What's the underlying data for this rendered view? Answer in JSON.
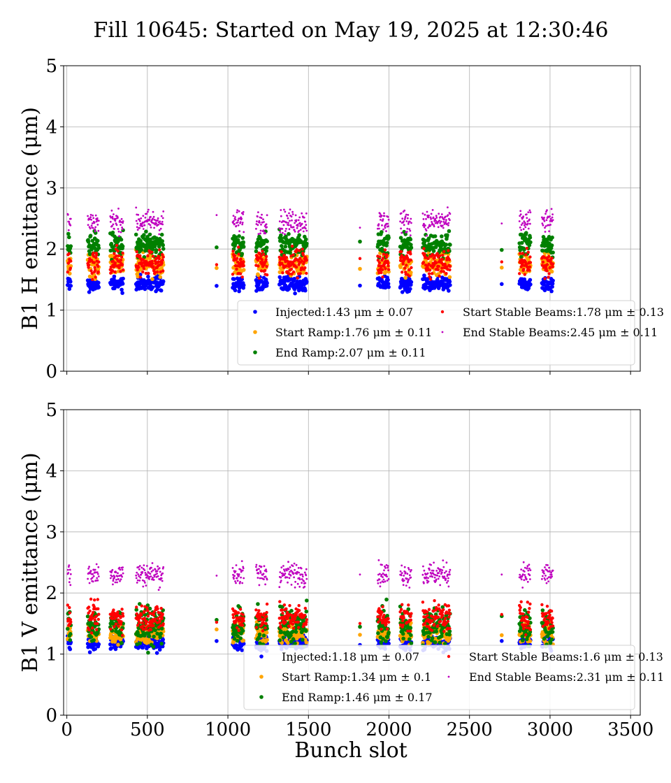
{
  "figure": {
    "title": "Fill 10645: Started on May 19, 2025 at 12:30:46",
    "xlabel": "Bunch slot"
  },
  "chart_data": [
    {
      "type": "scatter",
      "ylabel": "B1 H emittance (μm)",
      "xlim": [
        -20,
        3560
      ],
      "ylim": [
        0,
        5
      ],
      "xticks": [
        0,
        500,
        1000,
        1500,
        2000,
        2500,
        3000,
        3500
      ],
      "yticks": [
        0,
        1,
        2,
        3,
        4,
        5
      ],
      "grid": true,
      "legend_placement": "lower-right",
      "legend_columns": 2,
      "trains": [
        [
          5,
          25
        ],
        [
          130,
          200
        ],
        [
          270,
          350
        ],
        [
          430,
          600
        ],
        [
          1030,
          1100
        ],
        [
          1175,
          1245
        ],
        [
          1320,
          1490
        ],
        [
          1930,
          2000
        ],
        [
          2070,
          2140
        ],
        [
          2210,
          2380
        ],
        [
          2810,
          2880
        ],
        [
          2950,
          3020
        ]
      ],
      "singles": [
        930,
        1820,
        2700
      ],
      "series": [
        {
          "label": "Injected",
          "mean": 1.43,
          "std": 0.07,
          "color": "#0000ff",
          "marker_r": 2.8
        },
        {
          "label": "Start Ramp",
          "mean": 1.76,
          "std": 0.11,
          "color": "#ffa500",
          "marker_r": 2.8
        },
        {
          "label": "End Ramp",
          "mean": 2.07,
          "std": 0.11,
          "color": "#008000",
          "marker_r": 2.8
        },
        {
          "label": "Start Stable Beams",
          "mean": 1.78,
          "std": 0.13,
          "color": "#ff0000",
          "marker_r": 2.2
        },
        {
          "label": "End Stable Beams",
          "mean": 2.45,
          "std": 0.11,
          "color": "#bf00bf",
          "marker_r": 1.4
        }
      ],
      "legend_entries": [
        "Injected:1.43 μm ± 0.07",
        "Start Ramp:1.76 μm ± 0.11",
        "End Ramp:2.07 μm ± 0.11",
        "Start Stable Beams:1.78 μm ± 0.13",
        "End Stable Beams:2.45 μm ± 0.11"
      ]
    },
    {
      "type": "scatter",
      "ylabel": "B1 V emittance (μm)",
      "xlim": [
        -20,
        3560
      ],
      "ylim": [
        0,
        5
      ],
      "xticks": [
        0,
        500,
        1000,
        1500,
        2000,
        2500,
        3000,
        3500
      ],
      "yticks": [
        0,
        1,
        2,
        3,
        4,
        5
      ],
      "grid": true,
      "legend_placement": "lower-right",
      "legend_columns": 2,
      "trains": [
        [
          5,
          25
        ],
        [
          130,
          200
        ],
        [
          270,
          350
        ],
        [
          430,
          600
        ],
        [
          1030,
          1100
        ],
        [
          1175,
          1245
        ],
        [
          1320,
          1490
        ],
        [
          1930,
          2000
        ],
        [
          2070,
          2140
        ],
        [
          2210,
          2380
        ],
        [
          2810,
          2880
        ],
        [
          2950,
          3020
        ]
      ],
      "singles": [
        930,
        1820,
        2700
      ],
      "series": [
        {
          "label": "Injected",
          "mean": 1.18,
          "std": 0.07,
          "color": "#0000ff",
          "marker_r": 2.8
        },
        {
          "label": "Start Ramp",
          "mean": 1.34,
          "std": 0.1,
          "color": "#ffa500",
          "marker_r": 2.8
        },
        {
          "label": "End Ramp",
          "mean": 1.46,
          "std": 0.17,
          "color": "#008000",
          "marker_r": 2.8
        },
        {
          "label": "Start Stable Beams",
          "mean": 1.6,
          "std": 0.13,
          "color": "#ff0000",
          "marker_r": 2.2
        },
        {
          "label": "End Stable Beams",
          "mean": 2.31,
          "std": 0.11,
          "color": "#bf00bf",
          "marker_r": 1.4
        }
      ],
      "legend_entries": [
        "Injected:1.18 μm ± 0.07",
        "Start Ramp:1.34 μm ± 0.1",
        "End Ramp:1.46 μm ± 0.17",
        "Start Stable Beams:1.6 μm ± 0.13",
        "End Stable Beams:2.31 μm ± 0.11"
      ]
    }
  ]
}
